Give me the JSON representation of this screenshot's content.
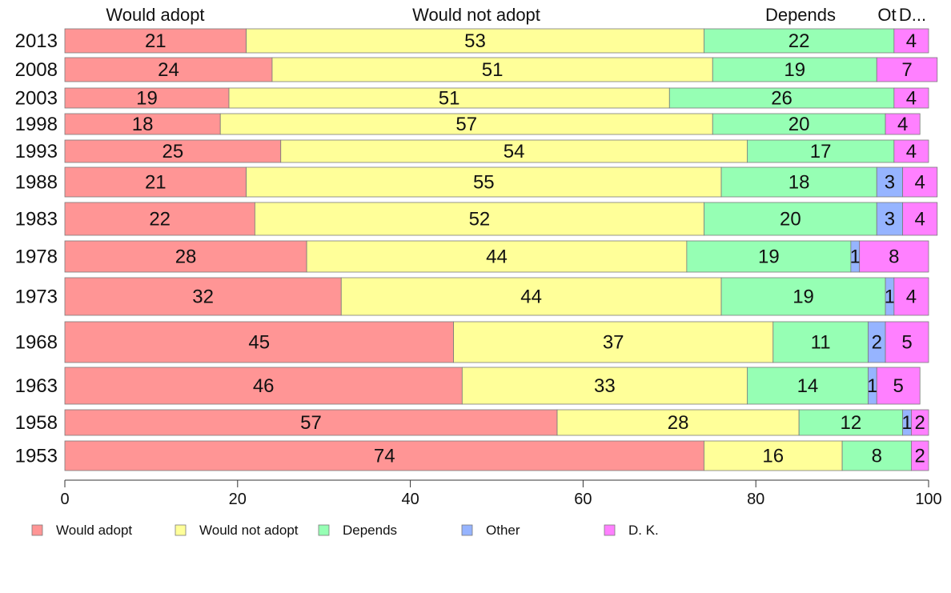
{
  "chart_data": {
    "type": "bar",
    "orientation": "horizontal",
    "stacked": true,
    "categories": [
      "2013",
      "2008",
      "2003",
      "1998",
      "1993",
      "1988",
      "1983",
      "1978",
      "1973",
      "1968",
      "1963",
      "1958",
      "1953"
    ],
    "series": [
      {
        "name": "Would adopt",
        "color": "#ff9595",
        "values": [
          21,
          24,
          19,
          18,
          25,
          21,
          22,
          28,
          32,
          45,
          46,
          57,
          74
        ]
      },
      {
        "name": "Would not adopt",
        "color": "#ffff99",
        "values": [
          53,
          51,
          51,
          57,
          54,
          55,
          52,
          44,
          44,
          37,
          33,
          28,
          16
        ]
      },
      {
        "name": "Depends",
        "color": "#96ffb4",
        "values": [
          22,
          19,
          26,
          20,
          17,
          18,
          20,
          19,
          19,
          11,
          14,
          12,
          8
        ]
      },
      {
        "name": "Other",
        "color": "#96b4ff",
        "values": [
          0,
          0,
          0,
          0,
          0,
          3,
          3,
          1,
          1,
          2,
          1,
          1,
          0
        ]
      },
      {
        "name": "D. K.",
        "color": "#ff80ff",
        "values": [
          4,
          7,
          4,
          4,
          4,
          4,
          4,
          8,
          4,
          5,
          5,
          2,
          2
        ]
      }
    ],
    "top_labels": [
      "Would adopt",
      "Would not adopt",
      "Depends",
      "Ot",
      "D..."
    ],
    "xlim": [
      0,
      100
    ],
    "xticks": [
      "0",
      "20",
      "40",
      "60",
      "80",
      "100"
    ],
    "xlabel": "",
    "ylabel": "",
    "grid": false,
    "legend": "bottom"
  }
}
